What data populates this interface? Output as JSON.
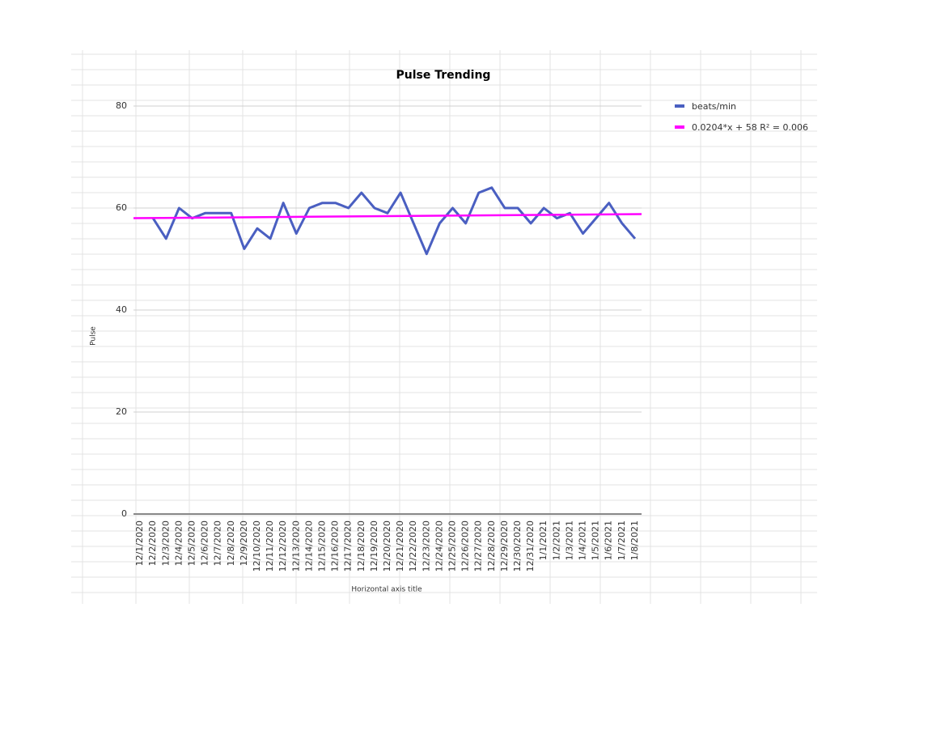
{
  "chart_data": {
    "type": "line",
    "title": "Pulse Trending",
    "x_label": "Horizontal axis title",
    "y_label": "Pulse",
    "categories": [
      "12/1/2020",
      "12/2/2020",
      "12/3/2020",
      "12/4/2020",
      "12/5/2020",
      "12/6/2020",
      "12/7/2020",
      "12/8/2020",
      "12/9/2020",
      "12/10/2020",
      "12/11/2020",
      "12/12/2020",
      "12/13/2020",
      "12/14/2020",
      "12/15/2020",
      "12/16/2020",
      "12/17/2020",
      "12/18/2020",
      "12/19/2020",
      "12/20/2020",
      "12/21/2020",
      "12/22/2020",
      "12/23/2020",
      "12/24/2020",
      "12/25/2020",
      "12/26/2020",
      "12/27/2020",
      "12/28/2020",
      "12/29/2020",
      "12/30/2020",
      "12/31/2020",
      "1/1/2021",
      "1/2/2021",
      "1/3/2021",
      "1/4/2021",
      "1/5/2021",
      "1/6/2021",
      "1/7/2021",
      "1/8/2021"
    ],
    "series": [
      {
        "name": "beats/min",
        "color": "#4a5fc1",
        "values": [
          null,
          58,
          54,
          60,
          58,
          59,
          59,
          59,
          52,
          56,
          54,
          61,
          55,
          60,
          61,
          61,
          60,
          63,
          60,
          59,
          63,
          57,
          51,
          57,
          60,
          57,
          63,
          64,
          60,
          60,
          57,
          60,
          58,
          59,
          55,
          58,
          61,
          57,
          54
        ]
      }
    ],
    "trendline": {
      "name": "0.0204*x + 58 R² = 0.006",
      "color": "#ff00ff",
      "slope": 0.0204,
      "intercept": 58
    },
    "ylim": [
      0,
      80
    ],
    "yticks": [
      0,
      20,
      40,
      60,
      80
    ],
    "grid": true
  }
}
